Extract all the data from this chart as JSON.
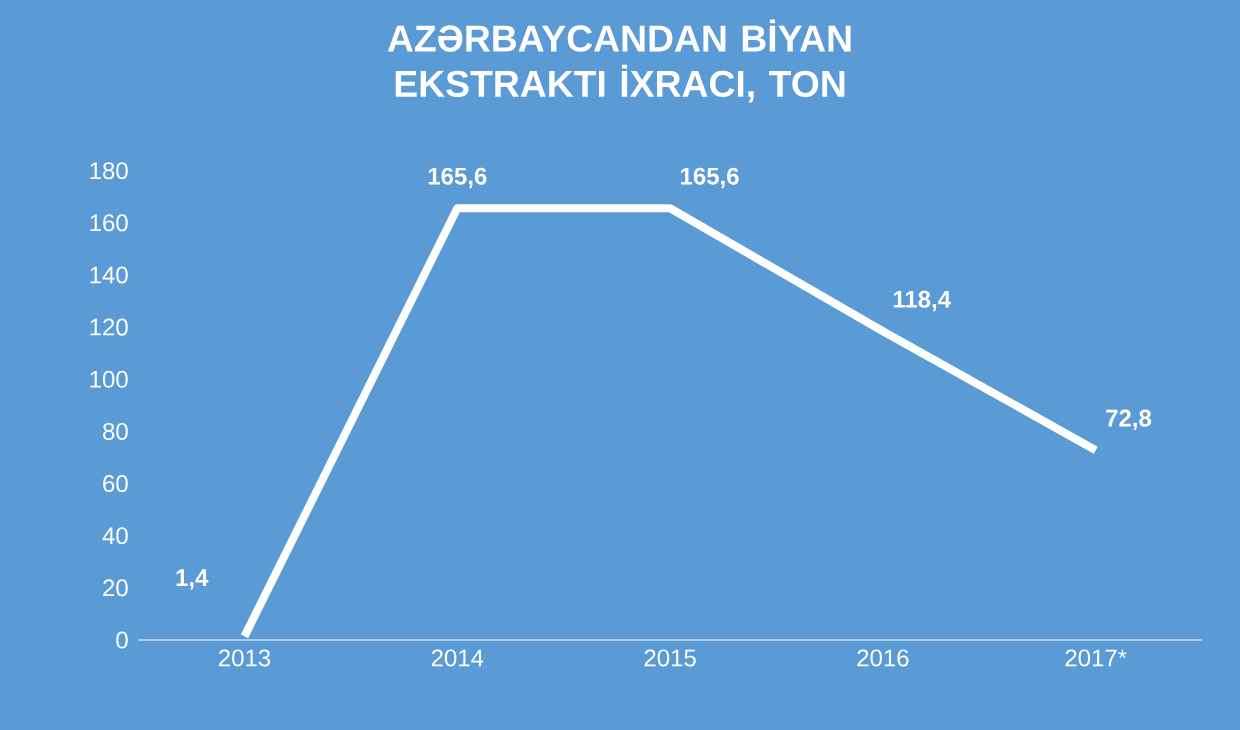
{
  "chart_data": {
    "type": "line",
    "title": "AZƏRBAYCANDAN BİYAN EKSTRAKTI İXRACI, TON",
    "categories": [
      "2013",
      "2014",
      "2015",
      "2016",
      "2017*"
    ],
    "values": [
      1.4,
      165.6,
      165.6,
      118.4,
      72.8
    ],
    "value_labels": [
      "1,4",
      "165,6",
      "165,6",
      "118,4",
      "72,8"
    ],
    "color": "#ffffff",
    "ylim": [
      0,
      180
    ],
    "yticks": [
      0,
      20,
      40,
      60,
      80,
      100,
      120,
      140,
      160,
      180
    ],
    "grid": false,
    "marker": "none",
    "line_style": "solid"
  }
}
